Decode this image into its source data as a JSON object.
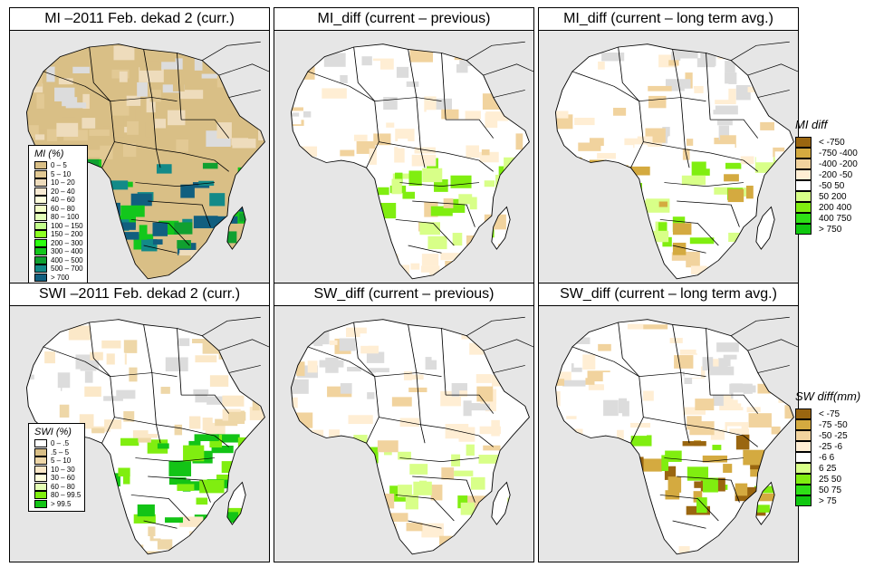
{
  "panels": [
    {
      "id": "mi-current",
      "title": "MI –2011 Feb. dekad 2 (curr.)",
      "variable": "MI",
      "legend": "mi"
    },
    {
      "id": "mi-diff-previous",
      "title": "MI_diff (current – previous)",
      "variable": "MI_diff",
      "legend": "mi_diff"
    },
    {
      "id": "mi-diff-longterm",
      "title": "MI_diff (current – long term avg.)",
      "variable": "MI_diff",
      "legend": "mi_diff"
    },
    {
      "id": "swi-current",
      "title": "SWI –2011 Feb. dekad 2 (curr.)",
      "variable": "SWI",
      "legend": "swi"
    },
    {
      "id": "sw-diff-previous",
      "title": "SW_diff (current – previous)",
      "variable": "SW_diff",
      "legend": "sw_diff"
    },
    {
      "id": "sw-diff-longterm",
      "title": "SW_diff (current – long term avg.)",
      "variable": "SW_diff",
      "legend": "sw_diff"
    }
  ],
  "legends": {
    "mi": {
      "title": "MI (%)",
      "classes": [
        {
          "label": "0 – 5",
          "color": "#d9bf86"
        },
        {
          "label": "5 – 10",
          "color": "#e2c994"
        },
        {
          "label": "10 – 20",
          "color": "#eedcbc"
        },
        {
          "label": "20 – 40",
          "color": "#f8ead3"
        },
        {
          "label": "40 – 60",
          "color": "#ffffdd"
        },
        {
          "label": "60 – 80",
          "color": "#f4ffc8"
        },
        {
          "label": "80 – 100",
          "color": "#e2ffb8"
        },
        {
          "label": "100 – 150",
          "color": "#c3ff8c"
        },
        {
          "label": "150 – 200",
          "color": "#8cff22"
        },
        {
          "label": "200 – 300",
          "color": "#2dff11"
        },
        {
          "label": "300 – 400",
          "color": "#13c71c"
        },
        {
          "label": "400 – 500",
          "color": "#10a030"
        },
        {
          "label": "500 – 700",
          "color": "#138a88"
        },
        {
          "label": "> 700",
          "color": "#115f7f"
        }
      ]
    },
    "swi": {
      "title": "SWI (%)",
      "classes": [
        {
          "label": "0 – .5",
          "color": "#ffffff"
        },
        {
          "label": ".5 – 5",
          "color": "#d9bf86"
        },
        {
          "label": "5 – 10",
          "color": "#eed7a8"
        },
        {
          "label": "10 – 30",
          "color": "#fbe8c8"
        },
        {
          "label": "30 – 60",
          "color": "#ffffdd"
        },
        {
          "label": "60 – 80",
          "color": "#e4ffb4"
        },
        {
          "label": "80 – 99.5",
          "color": "#80ee10"
        },
        {
          "label": "> 99.5",
          "color": "#13c416"
        }
      ]
    },
    "mi_diff": {
      "title": "MI diff",
      "classes": [
        {
          "label": "< -750",
          "color": "#9a6610"
        },
        {
          "label": "-750 -400",
          "color": "#d4aa40"
        },
        {
          "label": "-400 -200",
          "color": "#f1d39e"
        },
        {
          "label": "-200 -50",
          "color": "#ffeed4"
        },
        {
          "label": "-50  50",
          "color": "#ffffff"
        },
        {
          "label": "50  200",
          "color": "#d8ff88"
        },
        {
          "label": "200  400",
          "color": "#80ee10"
        },
        {
          "label": "400  750",
          "color": "#2ee016"
        },
        {
          "label": "> 750",
          "color": "#10c810"
        }
      ]
    },
    "sw_diff": {
      "title": "SW diff(mm)",
      "classes": [
        {
          "label": "< -75",
          "color": "#9a6610"
        },
        {
          "label": "-75 -50",
          "color": "#d4aa40"
        },
        {
          "label": "-50 -25",
          "color": "#f1d39e"
        },
        {
          "label": "-25  -6",
          "color": "#ffeed4"
        },
        {
          "label": "-6  6",
          "color": "#ffffff"
        },
        {
          "label": "6  25",
          "color": "#d8ff88"
        },
        {
          "label": "25  50",
          "color": "#80ee10"
        },
        {
          "label": "50  75",
          "color": "#2ee016"
        },
        {
          "label": "> 75",
          "color": "#10c810"
        }
      ]
    }
  },
  "colors": {
    "ocean": "#e6e6e6",
    "nodata": "#dcdcdc",
    "border": "#000000"
  }
}
